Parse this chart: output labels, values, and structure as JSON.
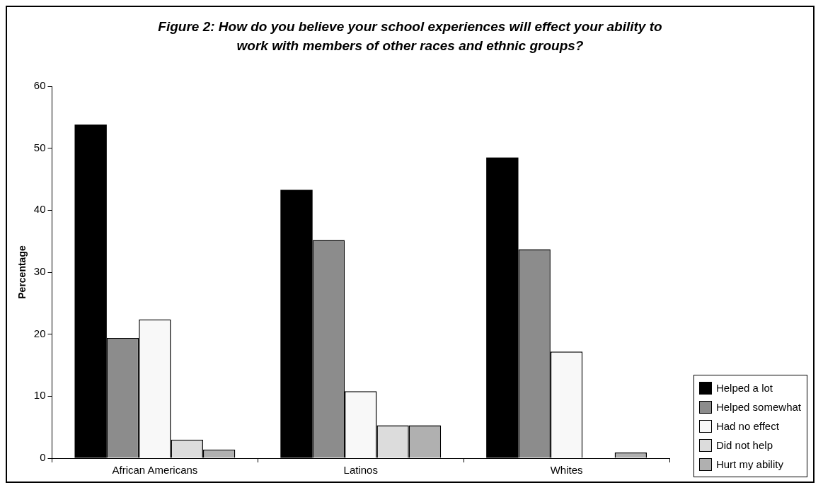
{
  "chart_data": {
    "type": "bar",
    "title": "Figure 2: How do you believe your school experiences will effect your ability to work with members of other races and ethnic groups?",
    "ylabel": "Percentage",
    "categories": [
      "African Americans",
      "Latinos",
      "Whites"
    ],
    "series": [
      {
        "name": "Helped a lot",
        "color": "#000000",
        "values": [
          53.8,
          43.3,
          48.5
        ]
      },
      {
        "name": "Helped somewhat",
        "color": "#8c8c8c",
        "values": [
          19.4,
          35.2,
          33.7
        ]
      },
      {
        "name": "Had no effect",
        "color": "#f8f8f8",
        "values": [
          22.4,
          10.8,
          17.2
        ]
      },
      {
        "name": "Did not help",
        "color": "#dcdcdc",
        "values": [
          3.0,
          5.3,
          0
        ]
      },
      {
        "name": "Hurt my ability",
        "color": "#b0b0b0",
        "values": [
          1.4,
          5.3,
          0.9
        ]
      }
    ],
    "ylim": [
      0,
      60
    ],
    "yticks": [
      0,
      10,
      20,
      30,
      40,
      50,
      60
    ],
    "grid": false,
    "legend": "bottom right"
  }
}
